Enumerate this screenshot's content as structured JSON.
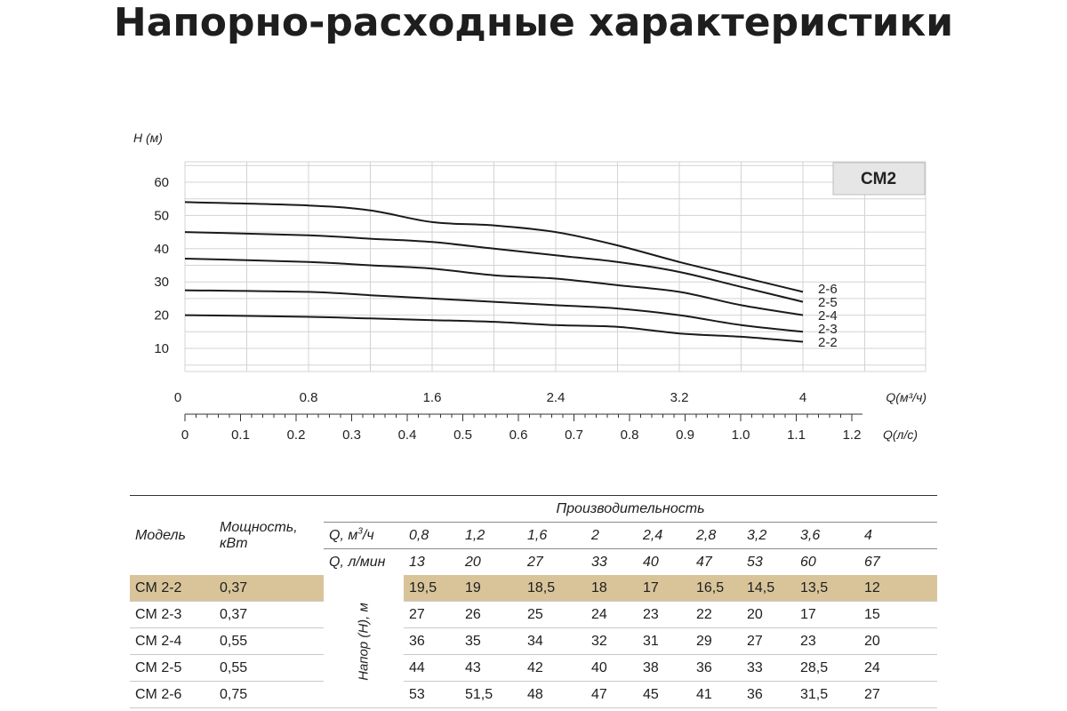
{
  "page": {
    "title": "Напорно-расходные характеристики"
  },
  "colors": {
    "grid": "#d3d3d3",
    "curve": "#1a1a1a",
    "badge": "#e6e6e6",
    "highlight": "#d9c49a"
  },
  "chart_data": {
    "type": "line",
    "title": "",
    "badge": "CM2",
    "ylabel": "H (м)",
    "xlabel": "Q(м³/ч)",
    "xlabel2": "Q(л/с)",
    "ylim": [
      0,
      65
    ],
    "xlim": [
      0,
      4.5
    ],
    "yticks": [
      10,
      20,
      30,
      40,
      50,
      60
    ],
    "xticks": [
      0,
      0.8,
      1.6,
      2.4,
      3.2,
      4
    ],
    "xticks_labels": [
      "0",
      "0.8",
      "1.6",
      "2.4",
      "3.2",
      "4"
    ],
    "x2ticks": [
      0,
      0.1,
      0.2,
      0.3,
      0.4,
      0.5,
      0.6,
      0.7,
      0.8,
      0.9,
      1.0,
      1.1,
      1.2
    ],
    "x2ticks_labels": [
      "0",
      "0.1",
      "0.2",
      "0.3",
      "0.4",
      "0.5",
      "0.6",
      "0.7",
      "0.8",
      "0.9",
      "1.0",
      "1.1",
      "1.2"
    ],
    "grid": true,
    "legend": "curve-end labels",
    "x": [
      0,
      0.8,
      1.2,
      1.6,
      2,
      2.4,
      2.8,
      3.2,
      3.6,
      4
    ],
    "series": [
      {
        "name": "2-6",
        "values": [
          54,
          53,
          51.5,
          48,
          47,
          45,
          41,
          36,
          31.5,
          27
        ]
      },
      {
        "name": "2-5",
        "values": [
          45,
          44,
          43,
          42,
          40,
          38,
          36,
          33,
          28.5,
          24
        ]
      },
      {
        "name": "2-4",
        "values": [
          37,
          36,
          35,
          34,
          32,
          31,
          29,
          27,
          23,
          20
        ]
      },
      {
        "name": "2-3",
        "values": [
          27.5,
          27,
          26,
          25,
          24,
          23,
          22,
          20,
          17,
          15
        ]
      },
      {
        "name": "2-2",
        "values": [
          20,
          19.5,
          19,
          18.5,
          18,
          17,
          16.5,
          14.5,
          13.5,
          12
        ]
      }
    ]
  },
  "table": {
    "col_model": "Модель",
    "col_power_line1": "Мощность,",
    "col_power_line2": "кВт",
    "perf_header": "Производительность",
    "q_m3_label": "Q, м³/ч",
    "q_m3": [
      "0,8",
      "1,2",
      "1,6",
      "2",
      "2,4",
      "2,8",
      "3,2",
      "3,6",
      "4"
    ],
    "q_lmin_label": "Q, л/мин",
    "q_lmin": [
      "13",
      "20",
      "27",
      "33",
      "40",
      "47",
      "53",
      "60",
      "67"
    ],
    "head_label": "Напор (Н), м",
    "rows": [
      {
        "model": "CM 2-2",
        "power": "0,37",
        "values": [
          "19,5",
          "19",
          "18,5",
          "18",
          "17",
          "16,5",
          "14,5",
          "13,5",
          "12"
        ]
      },
      {
        "model": "CM 2-3",
        "power": "0,37",
        "values": [
          "27",
          "26",
          "25",
          "24",
          "23",
          "22",
          "20",
          "17",
          "15"
        ]
      },
      {
        "model": "CM 2-4",
        "power": "0,55",
        "values": [
          "36",
          "35",
          "34",
          "32",
          "31",
          "29",
          "27",
          "23",
          "20"
        ]
      },
      {
        "model": "CM 2-5",
        "power": "0,55",
        "values": [
          "44",
          "43",
          "42",
          "40",
          "38",
          "36",
          "33",
          "28,5",
          "24"
        ]
      },
      {
        "model": "CM 2-6",
        "power": "0,75",
        "values": [
          "53",
          "51,5",
          "48",
          "47",
          "45",
          "41",
          "36",
          "31,5",
          "27"
        ]
      }
    ]
  }
}
